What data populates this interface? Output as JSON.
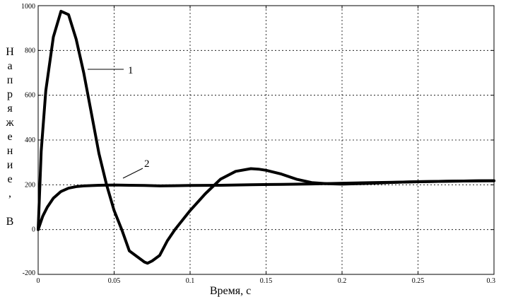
{
  "chart_data": {
    "type": "line",
    "title": "",
    "xlabel": "Время, с",
    "ylabel": "Напряжение, В",
    "xlim": [
      0,
      0.3
    ],
    "ylim": [
      -200,
      1000
    ],
    "xticks": [
      "0",
      "0.05",
      "0.1",
      "0.15",
      "0.2",
      "0.25",
      "0.3"
    ],
    "yticks": [
      "-200",
      "0",
      "200",
      "400",
      "600",
      "800",
      "1000"
    ],
    "grid": true,
    "series": [
      {
        "name": "1",
        "x": [
          0,
          0.002,
          0.005,
          0.01,
          0.015,
          0.02,
          0.025,
          0.03,
          0.035,
          0.04,
          0.045,
          0.05,
          0.055,
          0.06,
          0.065,
          0.07,
          0.072,
          0.075,
          0.08,
          0.085,
          0.09,
          0.1,
          0.11,
          0.12,
          0.13,
          0.14,
          0.145,
          0.15,
          0.16,
          0.17,
          0.18,
          0.19,
          0.2,
          0.21,
          0.22,
          0.23,
          0.24,
          0.25,
          0.26,
          0.27,
          0.28,
          0.29,
          0.3
        ],
        "y": [
          0,
          350,
          620,
          860,
          975,
          960,
          850,
          700,
          520,
          340,
          200,
          85,
          0,
          -95,
          -120,
          -145,
          -150,
          -140,
          -115,
          -50,
          0,
          85,
          160,
          225,
          260,
          272,
          270,
          265,
          248,
          225,
          210,
          205,
          203,
          205,
          207,
          210,
          212,
          214,
          215,
          216,
          217,
          218,
          218
        ]
      },
      {
        "name": "2",
        "x": [
          0,
          0.003,
          0.006,
          0.01,
          0.015,
          0.02,
          0.025,
          0.03,
          0.04,
          0.05,
          0.06,
          0.07,
          0.08,
          0.09,
          0.1,
          0.12,
          0.14,
          0.16,
          0.18,
          0.2,
          0.22,
          0.24,
          0.26,
          0.28,
          0.3
        ],
        "y": [
          0,
          60,
          100,
          140,
          170,
          185,
          192,
          195,
          198,
          199,
          198,
          197,
          195,
          196,
          197,
          198,
          200,
          202,
          204,
          207,
          210,
          212,
          215,
          217,
          218
        ]
      }
    ],
    "annotations": [
      {
        "text": "1",
        "series": "1"
      },
      {
        "text": "2",
        "series": "2"
      }
    ]
  }
}
